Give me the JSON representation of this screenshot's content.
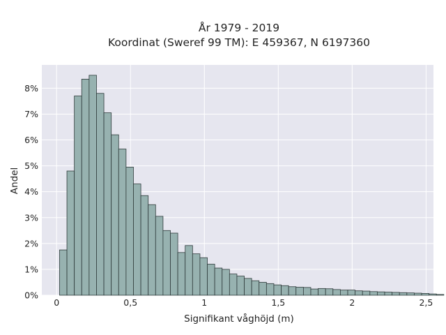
{
  "chart_data": {
    "type": "bar",
    "title_lines": [
      "År 1979 - 2019",
      "Koordinat (Sweref 99 TM): E 459367, N 6197360"
    ],
    "xlabel": "Signifikant våghöjd (m)",
    "ylabel": "Andel",
    "xlim": [
      -0.1,
      2.55
    ],
    "ylim": [
      0,
      8.9
    ],
    "x_ticks": [
      0,
      0.5,
      1,
      1.5,
      2,
      2.5
    ],
    "x_tick_labels": [
      "0",
      "0,5",
      "1",
      "1,5",
      "2",
      "2,5"
    ],
    "y_ticks": [
      0,
      1,
      2,
      3,
      4,
      5,
      6,
      7,
      8
    ],
    "y_tick_labels": [
      "0%",
      "1%",
      "2%",
      "3%",
      "4%",
      "5%",
      "6%",
      "7%",
      "8%"
    ],
    "bin_width": 0.05,
    "bin_start": 0.02,
    "values": [
      1.75,
      4.8,
      7.7,
      8.35,
      8.5,
      7.8,
      7.05,
      6.2,
      5.65,
      4.95,
      4.3,
      3.85,
      3.5,
      3.05,
      2.5,
      2.4,
      1.65,
      1.92,
      1.6,
      1.45,
      1.2,
      1.05,
      1.0,
      0.82,
      0.74,
      0.65,
      0.56,
      0.5,
      0.45,
      0.4,
      0.37,
      0.33,
      0.31,
      0.3,
      0.24,
      0.26,
      0.25,
      0.22,
      0.2,
      0.2,
      0.17,
      0.16,
      0.14,
      0.13,
      0.12,
      0.11,
      0.1,
      0.09,
      0.08,
      0.07,
      0.05,
      0.03
    ],
    "grid": true,
    "colors": {
      "bar_fill": "#97b2b0",
      "bar_edge": "#2e3a3a",
      "plot_bg": "#e6e6ef",
      "grid": "#ffffff"
    }
  }
}
